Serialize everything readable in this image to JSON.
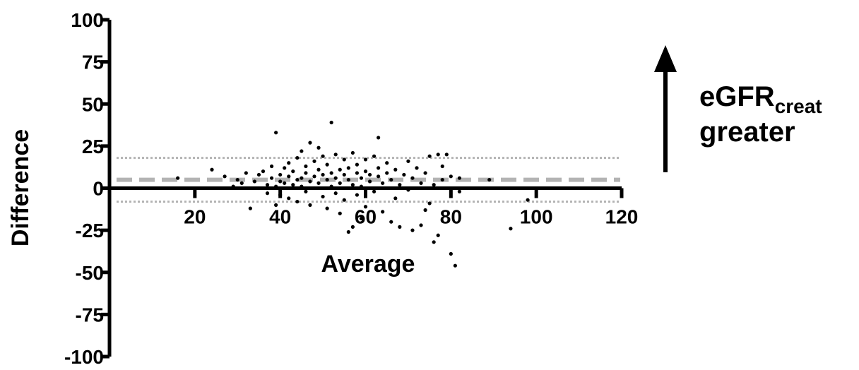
{
  "chart_data": {
    "type": "scatter",
    "title": "",
    "xlabel": "Average",
    "ylabel": "Difference",
    "xlim": [
      0,
      120
    ],
    "ylim": [
      -100,
      100
    ],
    "x_ticks": [
      20,
      40,
      60,
      80,
      100,
      120
    ],
    "y_ticks": [
      100,
      75,
      50,
      25,
      0,
      -25,
      -50,
      -75,
      -100
    ],
    "x_tick_labels": [
      "20",
      "40",
      "60",
      "80",
      "100",
      "120"
    ],
    "y_tick_labels": [
      "100",
      "75",
      "50",
      "25",
      "0",
      "-25",
      "-50",
      "-75",
      "-100"
    ],
    "grid": false,
    "reference_lines": [
      {
        "kind": "mean_difference",
        "y": 5,
        "style": "dashed",
        "color": "#b3b3b3"
      },
      {
        "kind": "upper_limit_of_agreement",
        "y": 18,
        "style": "dotted",
        "color": "#b3b3b3"
      },
      {
        "kind": "lower_limit_of_agreement",
        "y": -8,
        "style": "dotted",
        "color": "#b3b3b3"
      }
    ],
    "annotation": {
      "arrow": "up-arrow",
      "text_main": "eGFR",
      "text_subscript": "creat",
      "text_line2": "greater"
    },
    "point_color": "#000000",
    "series": [
      {
        "points": [
          [
            16,
            6
          ],
          [
            24,
            11
          ],
          [
            27,
            7
          ],
          [
            29,
            1
          ],
          [
            30,
            5
          ],
          [
            31,
            3
          ],
          [
            32,
            9
          ],
          [
            33,
            -12
          ],
          [
            34,
            4
          ],
          [
            35,
            8
          ],
          [
            35,
            0
          ],
          [
            36,
            10
          ],
          [
            37,
            2
          ],
          [
            37,
            -3
          ],
          [
            38,
            6
          ],
          [
            38,
            13
          ],
          [
            39,
            33
          ],
          [
            39,
            1
          ],
          [
            39,
            -10
          ],
          [
            40,
            4
          ],
          [
            40,
            8
          ],
          [
            40,
            -4
          ],
          [
            41,
            12
          ],
          [
            41,
            3
          ],
          [
            42,
            7
          ],
          [
            42,
            -6
          ],
          [
            42,
            15
          ],
          [
            43,
            2
          ],
          [
            43,
            10
          ],
          [
            44,
            5
          ],
          [
            44,
            -8
          ],
          [
            44,
            18
          ],
          [
            45,
            6
          ],
          [
            45,
            1
          ],
          [
            45,
            22
          ],
          [
            46,
            9
          ],
          [
            46,
            -2
          ],
          [
            46,
            13
          ],
          [
            47,
            4
          ],
          [
            47,
            27
          ],
          [
            47,
            -10
          ],
          [
            48,
            7
          ],
          [
            48,
            16
          ],
          [
            48,
            0
          ],
          [
            49,
            11
          ],
          [
            49,
            24
          ],
          [
            49,
            3
          ],
          [
            50,
            8
          ],
          [
            50,
            -5
          ],
          [
            50,
            19
          ],
          [
            51,
            5
          ],
          [
            51,
            14
          ],
          [
            51,
            -12
          ],
          [
            52,
            39
          ],
          [
            52,
            9
          ],
          [
            52,
            1
          ],
          [
            53,
            6
          ],
          [
            53,
            20
          ],
          [
            53,
            -3
          ],
          [
            54,
            11
          ],
          [
            54,
            3
          ],
          [
            54,
            -15
          ],
          [
            55,
            8
          ],
          [
            55,
            17
          ],
          [
            55,
            -7
          ],
          [
            56,
            -26
          ],
          [
            56,
            5
          ],
          [
            56,
            12
          ],
          [
            57,
            -23
          ],
          [
            57,
            2
          ],
          [
            57,
            21
          ],
          [
            58,
            9
          ],
          [
            58,
            -4
          ],
          [
            58,
            14
          ],
          [
            59,
            6
          ],
          [
            59,
            -18
          ],
          [
            59,
            1
          ],
          [
            60,
            10
          ],
          [
            60,
            -11
          ],
          [
            60,
            17
          ],
          [
            61,
            4
          ],
          [
            61,
            8
          ],
          [
            62,
            19
          ],
          [
            62,
            -2
          ],
          [
            63,
            7
          ],
          [
            63,
            30
          ],
          [
            63,
            12
          ],
          [
            64,
            3
          ],
          [
            64,
            -14
          ],
          [
            65,
            9
          ],
          [
            65,
            15
          ],
          [
            66,
            -20
          ],
          [
            66,
            5
          ],
          [
            67,
            11
          ],
          [
            67,
            -6
          ],
          [
            68,
            2
          ],
          [
            68,
            -23
          ],
          [
            69,
            8
          ],
          [
            70,
            16
          ],
          [
            70,
            -1
          ],
          [
            71,
            -25
          ],
          [
            71,
            6
          ],
          [
            72,
            12
          ],
          [
            73,
            -22
          ],
          [
            73,
            3
          ],
          [
            74,
            -13
          ],
          [
            74,
            9
          ],
          [
            75,
            -9
          ],
          [
            75,
            19
          ],
          [
            76,
            -32
          ],
          [
            76,
            2
          ],
          [
            77,
            -28
          ],
          [
            77,
            20
          ],
          [
            78,
            13
          ],
          [
            78,
            5
          ],
          [
            79,
            20
          ],
          [
            80,
            7
          ],
          [
            80,
            -39
          ],
          [
            81,
            -46
          ],
          [
            82,
            6
          ],
          [
            82,
            -2
          ],
          [
            89,
            5
          ],
          [
            94,
            -24
          ],
          [
            98,
            -7
          ]
        ]
      }
    ]
  }
}
